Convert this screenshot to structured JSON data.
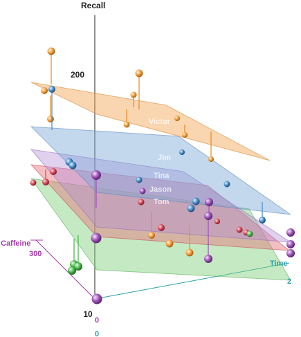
{
  "chart_data": {
    "type": "scatter",
    "dimension": "3d",
    "axes": {
      "x": {
        "label": "Caffeine",
        "tick": "300"
      },
      "y": {
        "label": "Recall",
        "ticks": [
          "200",
          "10"
        ]
      },
      "z": {
        "label": "Time",
        "ticks": [
          "0",
          "0",
          "2"
        ]
      }
    },
    "planes": [
      {
        "name": "Victor",
        "color": "#f5a44f"
      },
      {
        "name": "Jim",
        "color": "#7aa6d8"
      },
      {
        "name": "Tina",
        "color": "#b18bd6"
      },
      {
        "name": "Jason",
        "color": "#e6727a"
      },
      {
        "name": "Tom",
        "color": "#7fd07a"
      }
    ],
    "points": [
      {
        "series": "Victor",
        "color": "#e8902c",
        "approx": true
      },
      {
        "series": "Jim",
        "color": "#4a90c8",
        "approx": true
      },
      {
        "series": "Tina",
        "color": "#a055b8",
        "approx": true
      },
      {
        "series": "Jason",
        "color": "#d84a5a",
        "approx": true
      },
      {
        "series": "Tom",
        "color": "#4db84d",
        "approx": true
      }
    ],
    "grid": false,
    "legend": "none"
  }
}
